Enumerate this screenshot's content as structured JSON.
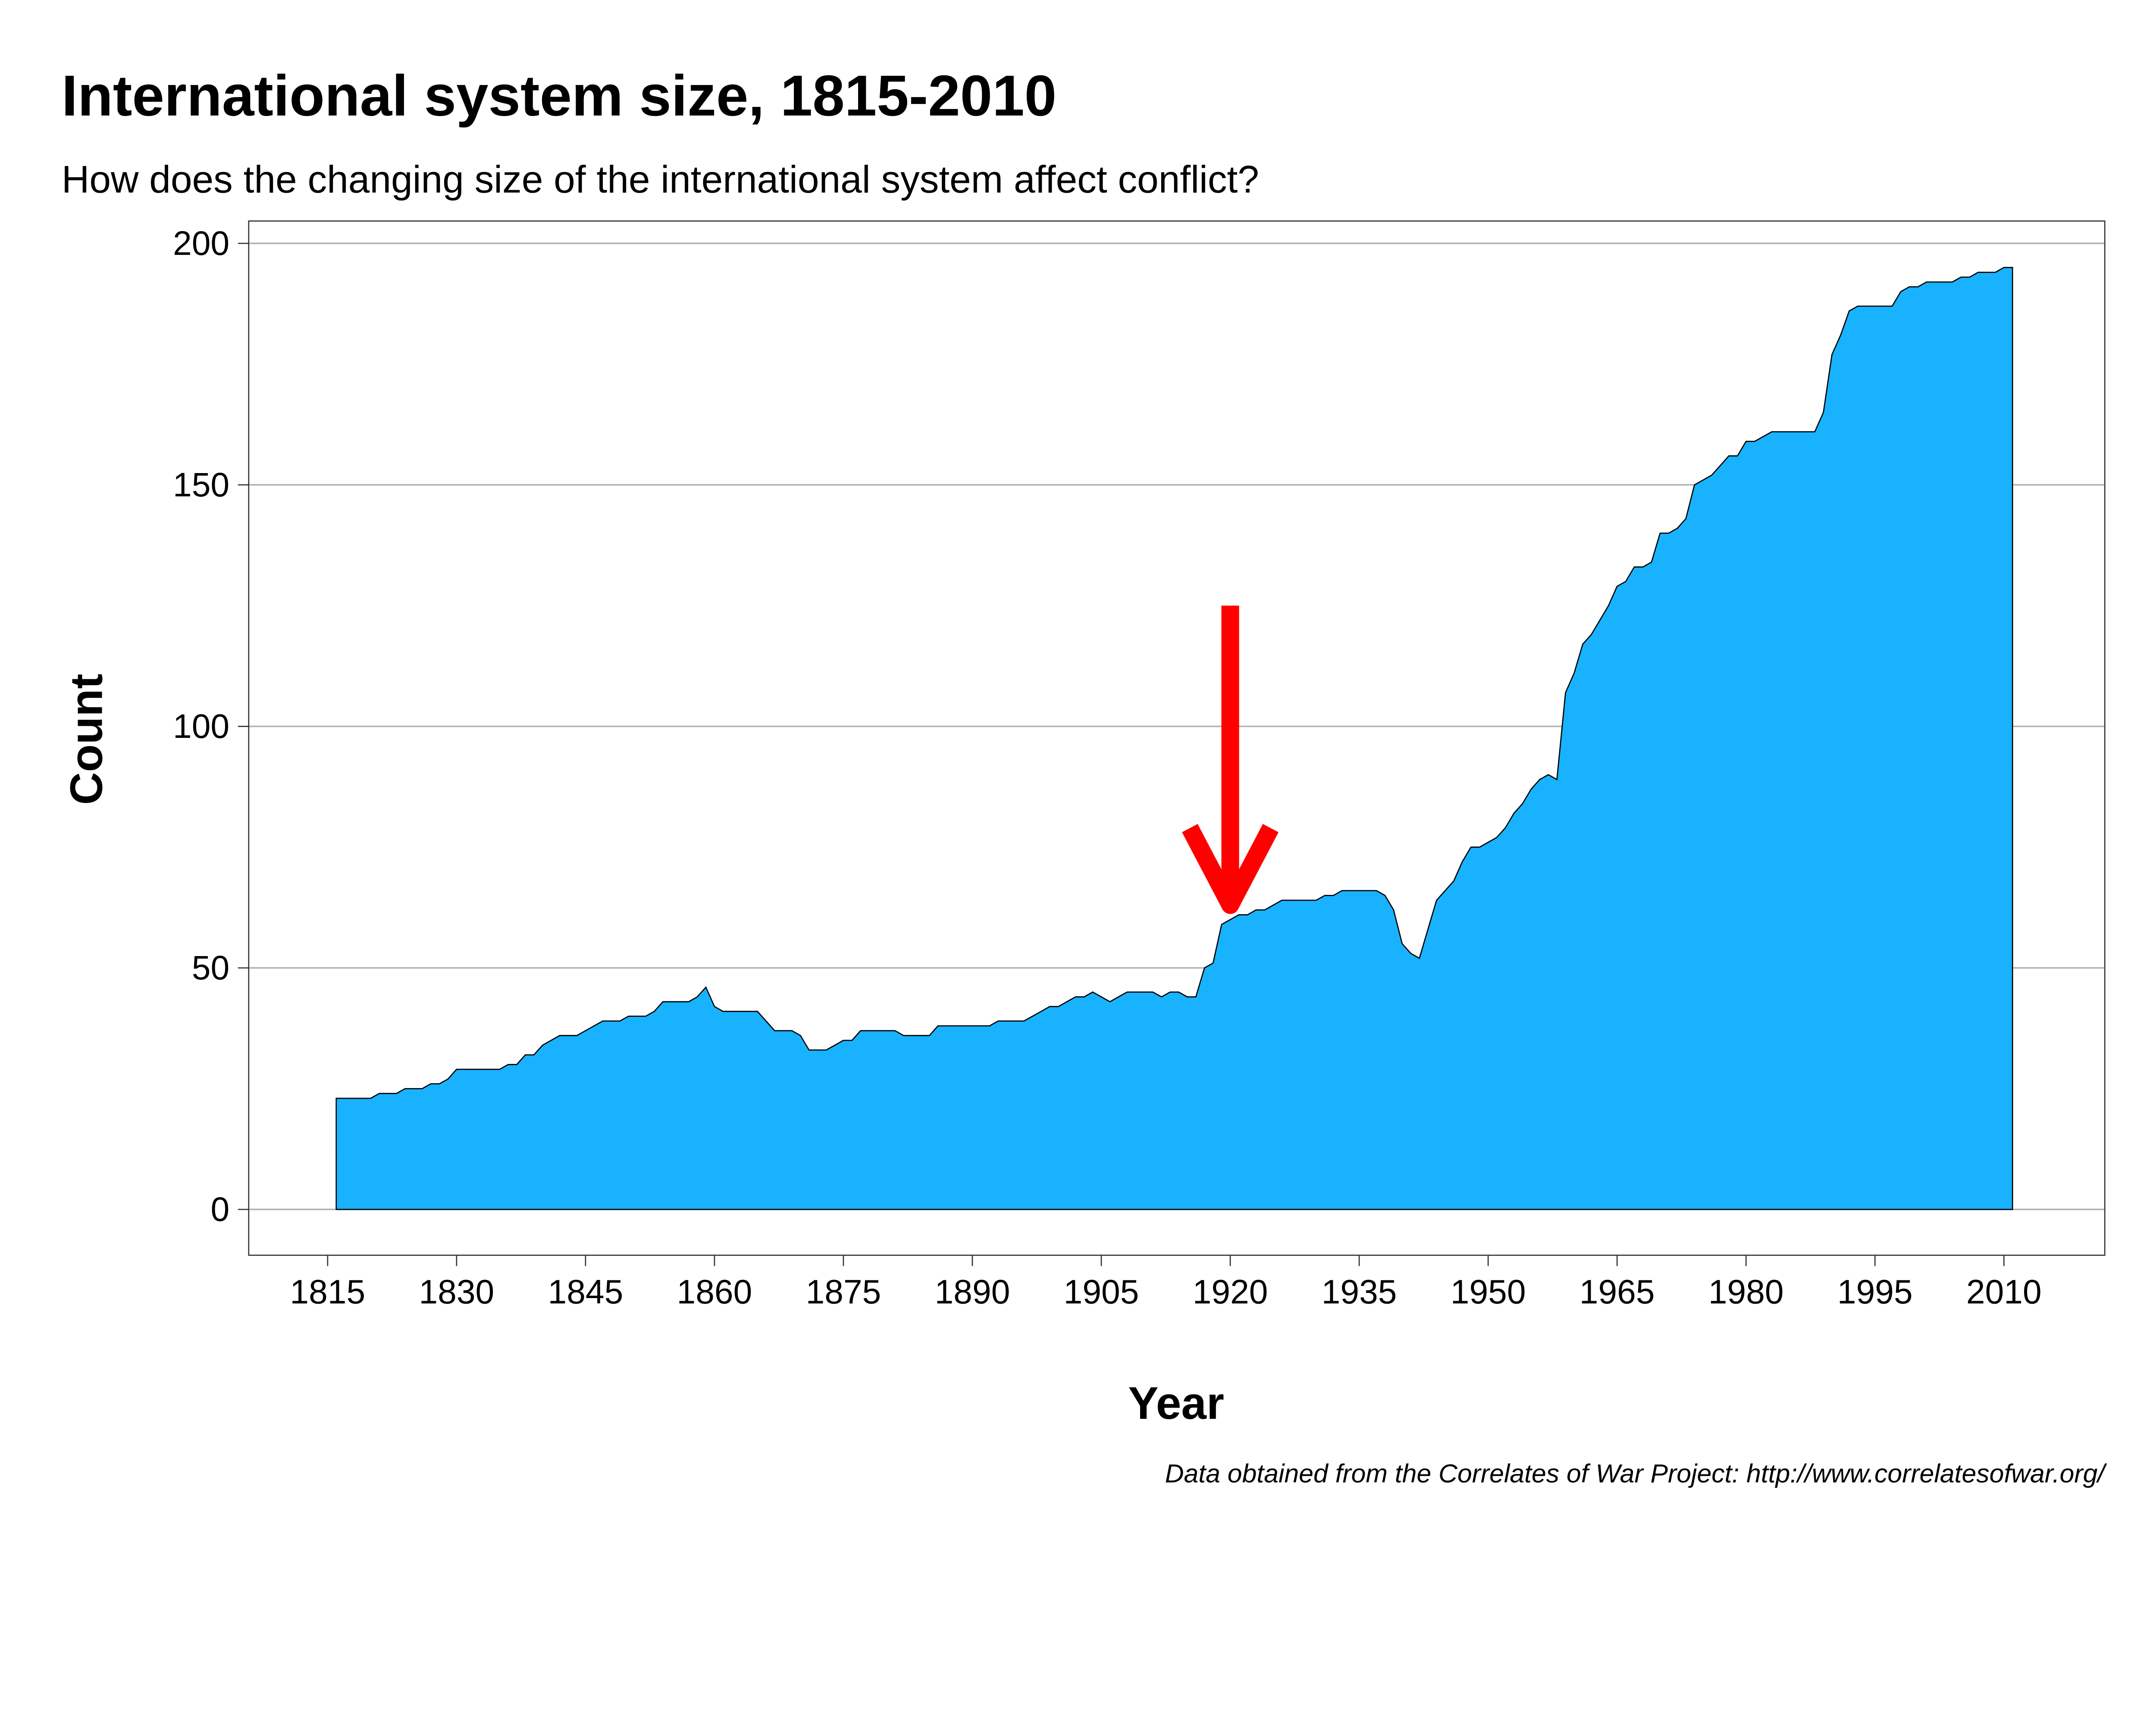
{
  "chart_data": {
    "type": "area",
    "title": "International system size, 1815-2010",
    "subtitle": "How does the changing size of the international system affect conflict?",
    "xlabel": "Year",
    "ylabel": "Count",
    "caption": "Data obtained from the Correlates of War Project: http://www.correlatesofwar.org/",
    "xlim": [
      1810,
      2022
    ],
    "ylim": [
      -10,
      204
    ],
    "xticks": [
      1815,
      1830,
      1845,
      1860,
      1875,
      1890,
      1905,
      1920,
      1935,
      1950,
      1965,
      1980,
      1995,
      2010
    ],
    "yticks": [
      0,
      50,
      100,
      150,
      200
    ],
    "grid": "horizontal",
    "colors": {
      "fill": "#19B2FF",
      "outline": "#000000",
      "arrow": "#FF0000",
      "grid": "#B3B3B3"
    },
    "annotation": {
      "type": "arrow",
      "x": 1920,
      "y_from": 125,
      "y_to": 63
    },
    "x": [
      1816,
      1817,
      1818,
      1819,
      1820,
      1821,
      1822,
      1823,
      1824,
      1825,
      1826,
      1827,
      1828,
      1829,
      1830,
      1831,
      1832,
      1833,
      1834,
      1835,
      1836,
      1837,
      1838,
      1839,
      1840,
      1841,
      1842,
      1843,
      1844,
      1845,
      1846,
      1847,
      1848,
      1849,
      1850,
      1851,
      1852,
      1853,
      1854,
      1855,
      1856,
      1857,
      1858,
      1859,
      1860,
      1861,
      1862,
      1863,
      1864,
      1865,
      1866,
      1867,
      1868,
      1869,
      1870,
      1871,
      1872,
      1873,
      1874,
      1875,
      1876,
      1877,
      1878,
      1879,
      1880,
      1881,
      1882,
      1883,
      1884,
      1885,
      1886,
      1887,
      1888,
      1889,
      1890,
      1891,
      1892,
      1893,
      1894,
      1895,
      1896,
      1897,
      1898,
      1899,
      1900,
      1901,
      1902,
      1903,
      1904,
      1905,
      1906,
      1907,
      1908,
      1909,
      1910,
      1911,
      1912,
      1913,
      1914,
      1915,
      1916,
      1917,
      1918,
      1919,
      1920,
      1921,
      1922,
      1923,
      1924,
      1925,
      1926,
      1927,
      1928,
      1929,
      1930,
      1931,
      1932,
      1933,
      1934,
      1935,
      1936,
      1937,
      1938,
      1939,
      1940,
      1941,
      1942,
      1943,
      1944,
      1945,
      1946,
      1947,
      1948,
      1949,
      1950,
      1951,
      1952,
      1953,
      1954,
      1955,
      1956,
      1957,
      1958,
      1959,
      1960,
      1961,
      1962,
      1963,
      1964,
      1965,
      1966,
      1967,
      1968,
      1969,
      1970,
      1971,
      1972,
      1973,
      1974,
      1975,
      1976,
      1977,
      1978,
      1979,
      1980,
      1981,
      1982,
      1983,
      1984,
      1985,
      1986,
      1987,
      1988,
      1989,
      1990,
      1991,
      1992,
      1993,
      1994,
      1995,
      1996,
      1997,
      1998,
      1999,
      2000,
      2001,
      2002,
      2003,
      2004,
      2005,
      2006,
      2007,
      2008,
      2009,
      2010,
      2011
    ],
    "values": [
      23,
      23,
      23,
      23,
      23,
      24,
      24,
      24,
      25,
      25,
      25,
      26,
      26,
      27,
      29,
      29,
      29,
      29,
      29,
      29,
      30,
      30,
      32,
      32,
      34,
      35,
      36,
      36,
      36,
      37,
      38,
      39,
      39,
      39,
      40,
      40,
      40,
      41,
      43,
      43,
      43,
      43,
      44,
      46,
      42,
      41,
      41,
      41,
      41,
      41,
      39,
      37,
      37,
      37,
      36,
      33,
      33,
      33,
      34,
      35,
      35,
      37,
      37,
      37,
      37,
      37,
      36,
      36,
      36,
      36,
      38,
      38,
      38,
      38,
      38,
      38,
      38,
      39,
      39,
      39,
      39,
      40,
      41,
      42,
      42,
      43,
      44,
      44,
      45,
      44,
      43,
      44,
      45,
      45,
      45,
      45,
      44,
      45,
      45,
      44,
      44,
      50,
      51,
      59,
      60,
      61,
      61,
      62,
      62,
      63,
      64,
      64,
      64,
      64,
      64,
      65,
      65,
      66,
      66,
      66,
      66,
      66,
      65,
      62,
      55,
      53,
      52,
      58,
      64,
      66,
      68,
      72,
      75,
      75,
      76,
      77,
      79,
      82,
      84,
      87,
      89,
      90,
      89,
      107,
      111,
      117,
      119,
      122,
      125,
      129,
      130,
      133,
      133,
      134,
      140,
      140,
      141,
      143,
      150,
      151,
      152,
      154,
      156,
      156,
      159,
      159,
      160,
      161,
      161,
      161,
      161,
      161,
      161,
      165,
      177,
      181,
      186,
      187,
      187,
      187,
      187,
      187,
      190,
      191,
      191,
      192,
      192,
      192,
      192,
      193,
      193,
      194,
      194,
      194,
      195,
      195
    ]
  }
}
